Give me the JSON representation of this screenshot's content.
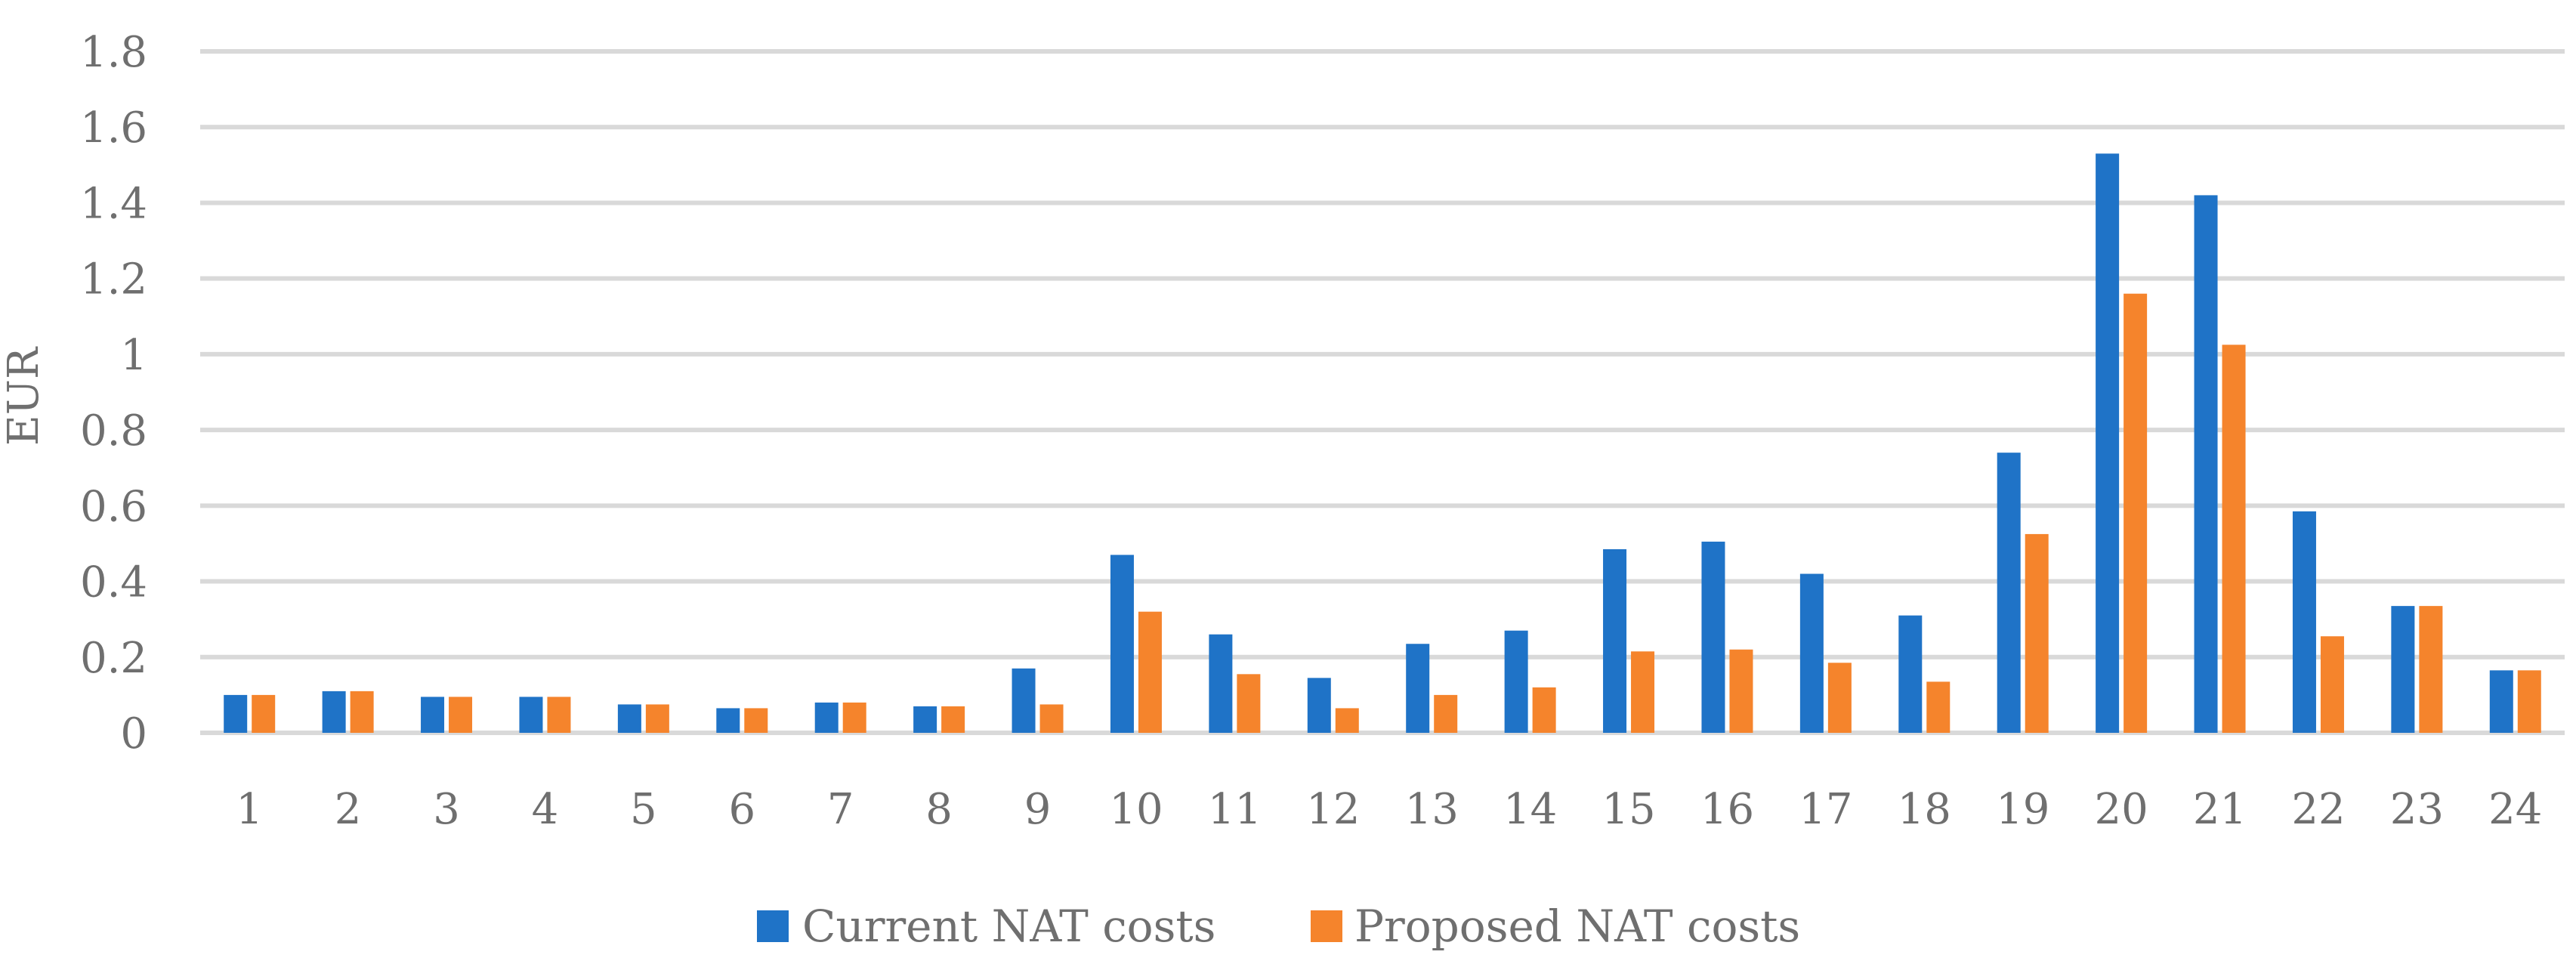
{
  "chart_data": {
    "type": "bar",
    "title": "",
    "xlabel": "",
    "ylabel": "EUR",
    "ylim": [
      0,
      1.8
    ],
    "yticks": [
      "0",
      "0.2",
      "0.4",
      "0.6",
      "0.8",
      "1",
      "1.2",
      "1.4",
      "1.6",
      "1.8"
    ],
    "grid": true,
    "legend_position": "bottom",
    "categories": [
      "1",
      "2",
      "3",
      "4",
      "5",
      "6",
      "7",
      "8",
      "9",
      "10",
      "11",
      "12",
      "13",
      "14",
      "15",
      "16",
      "17",
      "18",
      "19",
      "20",
      "21",
      "22",
      "23",
      "24"
    ],
    "series": [
      {
        "name": "Current NAT costs",
        "color": "#1f73c7",
        "values": [
          0.1,
          0.11,
          0.095,
          0.095,
          0.075,
          0.065,
          0.08,
          0.07,
          0.17,
          0.47,
          0.26,
          0.145,
          0.235,
          0.27,
          0.485,
          0.505,
          0.42,
          0.31,
          0.74,
          1.53,
          1.42,
          0.585,
          0.335,
          0.165
        ]
      },
      {
        "name": "Proposed NAT costs",
        "color": "#f5842c",
        "values": [
          0.1,
          0.11,
          0.095,
          0.095,
          0.075,
          0.065,
          0.08,
          0.07,
          0.075,
          0.32,
          0.155,
          0.065,
          0.1,
          0.12,
          0.215,
          0.22,
          0.185,
          0.135,
          0.525,
          1.16,
          1.025,
          0.255,
          0.335,
          0.165
        ]
      }
    ]
  }
}
